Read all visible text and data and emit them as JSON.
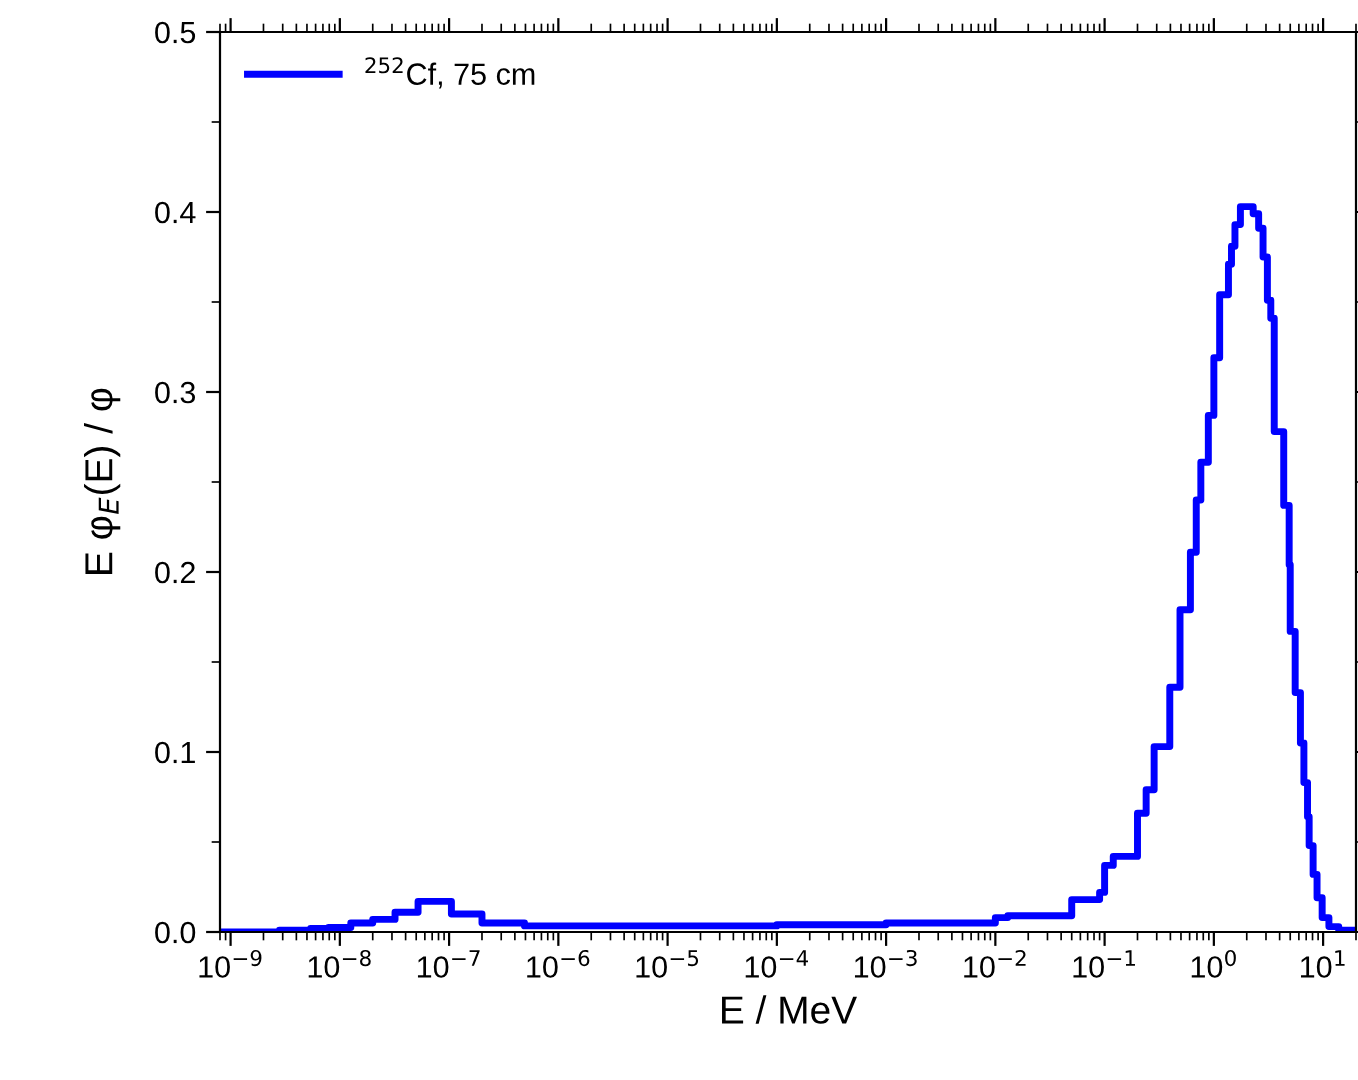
{
  "chart_data": {
    "type": "step",
    "xlabel": "E / MeV",
    "ylabel": "E φ$_{E}$(E) / φ",
    "log": "x",
    "xlim": [
      8e-10,
      20
    ],
    "ylim": [
      0,
      0.5
    ],
    "xticks": [
      {
        "value": 1e-09,
        "label": "10$^{−9}$"
      },
      {
        "value": 1e-08,
        "label": "10$^{−8}$"
      },
      {
        "value": 1e-07,
        "label": "10$^{−7}$"
      },
      {
        "value": 1e-06,
        "label": "10$^{−6}$"
      },
      {
        "value": 1e-05,
        "label": "10$^{−5}$"
      },
      {
        "value": 0.0001,
        "label": "10$^{−4}$"
      },
      {
        "value": 0.001,
        "label": "10$^{−3}$"
      },
      {
        "value": 0.01,
        "label": "10$^{−2}$"
      },
      {
        "value": 0.1,
        "label": "10$^{−1}$"
      },
      {
        "value": 1,
        "label": "10$^{0}$"
      },
      {
        "value": 10,
        "label": "10$^{1}$"
      }
    ],
    "yticks": [
      {
        "value": 0,
        "label": "0.0"
      },
      0.1,
      0.2,
      0.3,
      0.4,
      0.5
    ],
    "grid": false,
    "legend": "top left",
    "series": [
      {
        "name": "$^{252}$Cf, 75 cm",
        "color": "#0000ff",
        "x": [
          8e-10,
          2.8e-09,
          5.4e-09,
          7.9e-09,
          1.26e-08,
          2e-08,
          3.2e-08,
          5.2e-08,
          1.05e-07,
          2e-07,
          4.9e-07,
          0.0001,
          0.001,
          0.01,
          0.013,
          0.05,
          0.09,
          0.1,
          0.12,
          0.2,
          0.24,
          0.284,
          0.395,
          0.49,
          0.61,
          0.69,
          0.76,
          0.89,
          1.0,
          1.13,
          1.36,
          1.45,
          1.56,
          1.75,
          2.29,
          2.57,
          2.82,
          3.09,
          3.32,
          3.57,
          4.36,
          4.89,
          5.0,
          5.55,
          6.2,
          6.67,
          7.2,
          7.45,
          8.1,
          8.8,
          9.8,
          11.3,
          13.9,
          20
        ],
        "values": [
          0,
          0.001,
          0.002,
          0.0025,
          0.005,
          0.007,
          0.011,
          0.017,
          0.01,
          0.005,
          0.0034,
          0.004,
          0.005,
          0.008,
          0.009,
          0.018,
          0.022,
          0.037,
          0.042,
          0.066,
          0.079,
          0.103,
          0.136,
          0.179,
          0.211,
          0.24,
          0.261,
          0.287,
          0.319,
          0.354,
          0.371,
          0.381,
          0.393,
          0.403,
          0.399,
          0.391,
          0.375,
          0.351,
          0.341,
          0.278,
          0.237,
          0.204,
          0.167,
          0.133,
          0.105,
          0.083,
          0.064,
          0.048,
          0.032,
          0.019,
          0.008,
          0.003,
          0.001,
          0
        ]
      }
    ]
  }
}
